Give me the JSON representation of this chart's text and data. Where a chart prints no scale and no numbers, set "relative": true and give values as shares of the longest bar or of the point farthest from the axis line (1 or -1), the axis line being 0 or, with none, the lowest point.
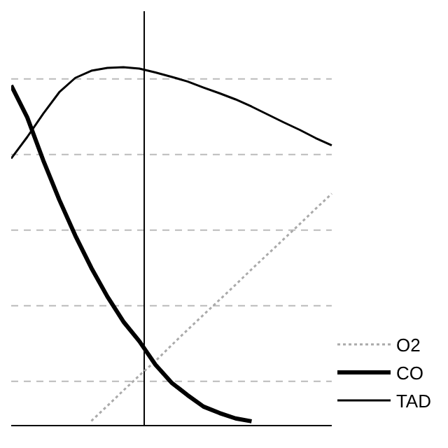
{
  "chart_data": {
    "type": "line",
    "relative": true,
    "categories": [
      null,
      null,
      null,
      null,
      null,
      null,
      null,
      null,
      null,
      null,
      null,
      null,
      null,
      null,
      null,
      null,
      null,
      null,
      null,
      null,
      null
    ],
    "grid": "y",
    "legend": "bottom right",
    "marker": "none",
    "series": [
      {
        "name": "O2",
        "color": "#aaaaaa",
        "line_style": "dotted",
        "values": [
          null,
          null,
          null,
          null,
          null,
          0.013,
          0.055,
          0.098,
          0.14,
          0.18,
          0.224,
          0.267,
          0.309,
          0.351,
          0.393,
          0.436,
          0.478,
          0.52,
          0.562,
          0.605,
          0.647
        ]
      },
      {
        "name": "CO",
        "color": "#000000",
        "line_style": "solid",
        "values": [
          0.949,
          0.86,
          0.74,
          0.63,
          0.53,
          0.44,
          0.36,
          0.29,
          0.235,
          0.17,
          0.12,
          0.085,
          0.053,
          0.035,
          0.02,
          0.012,
          null,
          null,
          null,
          null,
          null
        ]
      },
      {
        "name": "TAD",
        "color": "#000000",
        "line_style": "solid",
        "values": [
          0.745,
          0.805,
          0.87,
          0.93,
          0.97,
          0.99,
          0.998,
          1,
          0.996,
          0.985,
          0.973,
          0.96,
          0.943,
          0.927,
          0.91,
          0.89,
          0.868,
          0.846,
          0.825,
          0.802,
          0.782
        ]
      }
    ]
  }
}
